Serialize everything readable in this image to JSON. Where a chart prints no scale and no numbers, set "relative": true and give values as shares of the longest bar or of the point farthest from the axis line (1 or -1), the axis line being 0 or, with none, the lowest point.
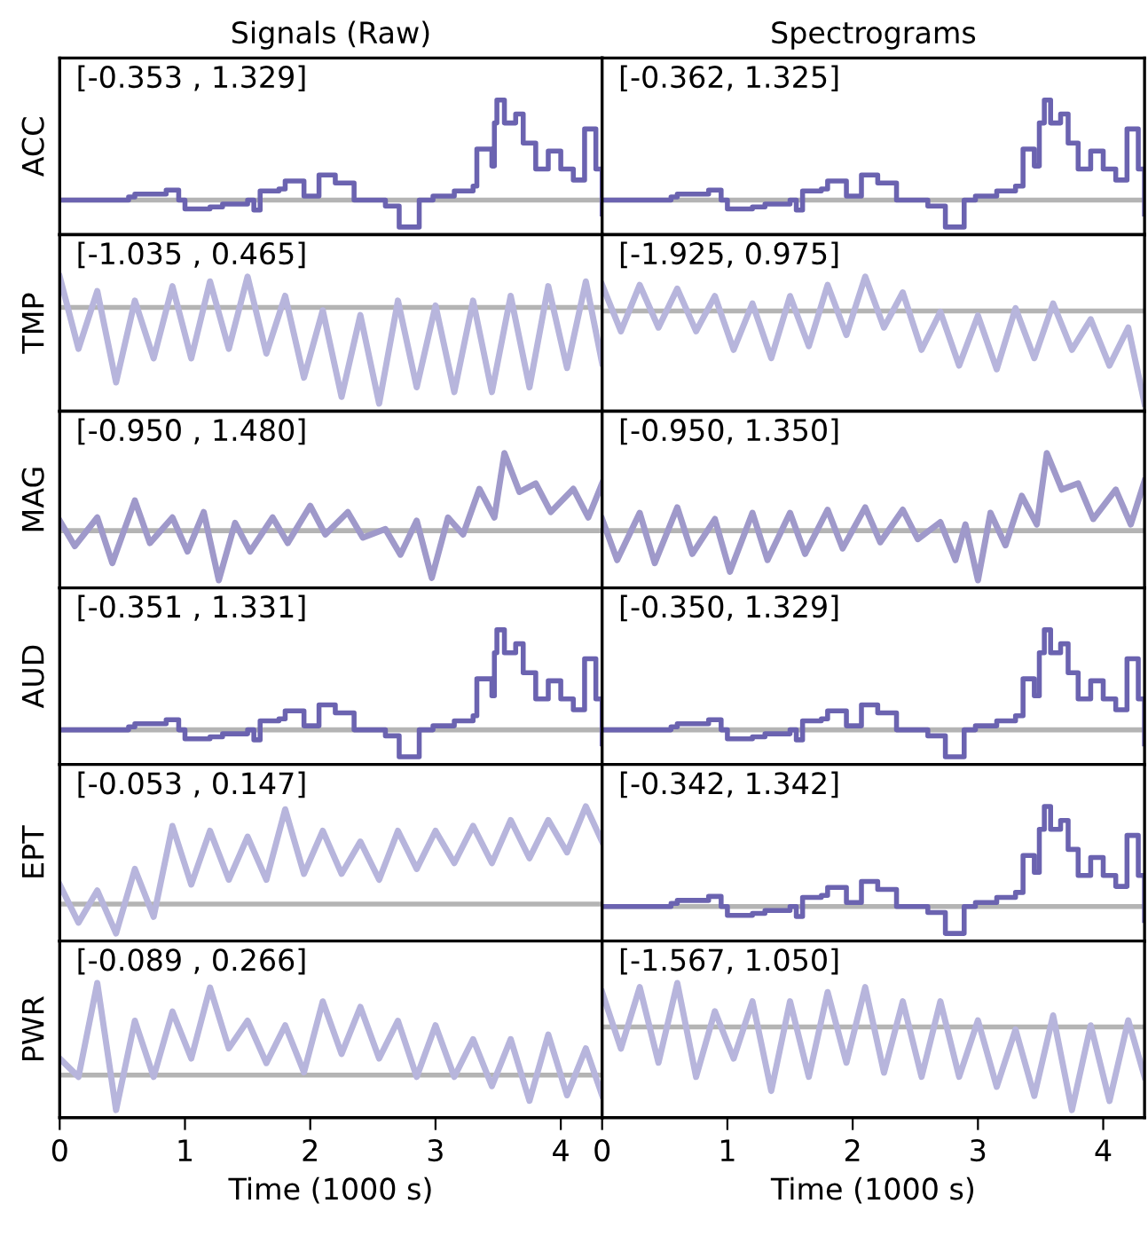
{
  "chart_data": [
    {
      "type": "step",
      "title": "Signals (Raw)",
      "ylabel": "ACC",
      "relative": true,
      "annotations": [
        "[-0.353 , 1.329]"
      ],
      "xlim": [
        0,
        4.33
      ],
      "xticks": [
        0,
        1,
        2,
        3,
        4
      ],
      "tick_labels": false,
      "ref_lines": [
        {
          "axis": "y",
          "value": 0,
          "color": "#b4b4b4"
        }
      ],
      "x": [
        0,
        0.55,
        0.6,
        0.85,
        0.95,
        1.0,
        1.2,
        1.3,
        1.5,
        1.55,
        1.6,
        1.75,
        1.8,
        1.95,
        2.07,
        2.2,
        2.35,
        2.6,
        2.71,
        2.87,
        2.98,
        3.15,
        3.3,
        3.33,
        3.45,
        3.47,
        3.49,
        3.55,
        3.64,
        3.7,
        3.8,
        3.9,
        4.0,
        4.1,
        4.19,
        4.28,
        4.33
      ],
      "series": [
        {
          "color": "#6b63b0",
          "values": [
            0,
            0.03,
            0.06,
            0.1,
            0,
            -0.09,
            -0.07,
            -0.04,
            0,
            -0.1,
            0.09,
            0.11,
            0.19,
            0.04,
            0.25,
            0.17,
            0,
            -0.06,
            -0.27,
            0,
            0.04,
            0.09,
            0.14,
            0.51,
            0.34,
            0.77,
            1.0,
            0.77,
            0.86,
            0.57,
            0.31,
            0.49,
            0.31,
            0.2,
            0.71,
            0.31,
            -0.14
          ]
        }
      ]
    },
    {
      "type": "step",
      "title": "Spectrograms",
      "relative": true,
      "annotations": [
        "[-0.362, 1.325]"
      ],
      "xlim": [
        0,
        4.33
      ],
      "xticks": [
        0,
        1,
        2,
        3,
        4
      ],
      "tick_labels": false,
      "ref_lines": [
        {
          "axis": "y",
          "value": 0,
          "color": "#b4b4b4"
        }
      ],
      "x": [
        0,
        0.55,
        0.6,
        0.85,
        0.95,
        1.0,
        1.2,
        1.3,
        1.5,
        1.55,
        1.6,
        1.75,
        1.8,
        1.95,
        2.07,
        2.2,
        2.35,
        2.6,
        2.74,
        2.89,
        2.98,
        3.15,
        3.3,
        3.36,
        3.45,
        3.49,
        3.53,
        3.58,
        3.66,
        3.72,
        3.8,
        3.9,
        4.0,
        4.1,
        4.19,
        4.28,
        4.33
      ],
      "series": [
        {
          "color": "#6b63b0",
          "values": [
            0,
            0.03,
            0.06,
            0.1,
            0,
            -0.09,
            -0.07,
            -0.04,
            0,
            -0.1,
            0.09,
            0.11,
            0.19,
            0.04,
            0.25,
            0.17,
            0,
            -0.06,
            -0.27,
            0,
            0.04,
            0.09,
            0.14,
            0.51,
            0.34,
            0.77,
            1.0,
            0.77,
            0.86,
            0.57,
            0.31,
            0.49,
            0.31,
            0.2,
            0.71,
            0.31,
            -0.14
          ]
        }
      ]
    },
    {
      "type": "line",
      "ylabel": "TMP",
      "relative": true,
      "annotations": [
        "[-1.035 , 0.465]"
      ],
      "xlim": [
        0,
        4.33
      ],
      "xticks": [
        0,
        1,
        2,
        3,
        4
      ],
      "tick_labels": false,
      "ref_lines": [
        {
          "axis": "y",
          "value": 0,
          "color": "#b4b4b4"
        }
      ],
      "x": [
        0,
        0.15,
        0.3,
        0.45,
        0.6,
        0.75,
        0.9,
        1.05,
        1.2,
        1.35,
        1.5,
        1.65,
        1.8,
        1.95,
        2.1,
        2.25,
        2.4,
        2.55,
        2.7,
        2.85,
        3.0,
        3.15,
        3.3,
        3.45,
        3.6,
        3.75,
        3.9,
        4.05,
        4.2,
        4.33
      ],
      "series": [
        {
          "color": "#b7b5dc",
          "values": [
            0.32,
            -0.43,
            0.17,
            -0.78,
            0.07,
            -0.53,
            0.22,
            -0.53,
            0.27,
            -0.43,
            0.32,
            -0.48,
            0.12,
            -0.73,
            -0.03,
            -0.93,
            -0.08,
            -1.0,
            0.07,
            -0.83,
            0.02,
            -0.88,
            0.07,
            -0.88,
            0.12,
            -0.83,
            0.22,
            -0.63,
            0.27,
            -0.58
          ]
        }
      ]
    },
    {
      "type": "line",
      "relative": true,
      "annotations": [
        "[-1.925, 0.975]"
      ],
      "xlim": [
        0,
        4.33
      ],
      "xticks": [
        0,
        1,
        2,
        3,
        4
      ],
      "tick_labels": false,
      "ref_lines": [
        {
          "axis": "y",
          "value": 0,
          "color": "#b4b4b4"
        }
      ],
      "x": [
        0,
        0.15,
        0.3,
        0.45,
        0.6,
        0.75,
        0.9,
        1.05,
        1.2,
        1.35,
        1.5,
        1.65,
        1.8,
        1.95,
        2.1,
        2.25,
        2.4,
        2.55,
        2.7,
        2.85,
        3.0,
        3.15,
        3.3,
        3.45,
        3.6,
        3.75,
        3.9,
        4.05,
        4.2,
        4.33
      ],
      "series": [
        {
          "color": "#b7b5dc",
          "values": [
            0.28,
            -0.22,
            0.28,
            -0.18,
            0.24,
            -0.22,
            0.16,
            -0.42,
            0.08,
            -0.51,
            0.16,
            -0.38,
            0.28,
            -0.26,
            0.37,
            -0.18,
            0.2,
            -0.42,
            -0.01,
            -0.59,
            -0.05,
            -0.63,
            0.03,
            -0.51,
            0.08,
            -0.42,
            -0.09,
            -0.59,
            -0.18,
            -1.0
          ]
        }
      ]
    },
    {
      "type": "line",
      "ylabel": "MAG",
      "relative": true,
      "annotations": [
        "[-0.950 , 1.480]"
      ],
      "xlim": [
        0,
        4.33
      ],
      "xticks": [
        0,
        1,
        2,
        3,
        4
      ],
      "tick_labels": false,
      "ref_lines": [
        {
          "axis": "y",
          "value": 0,
          "color": "#b4b4b4"
        }
      ],
      "x": [
        0,
        0.12,
        0.3,
        0.42,
        0.6,
        0.72,
        0.9,
        1.02,
        1.15,
        1.27,
        1.4,
        1.52,
        1.7,
        1.82,
        2.0,
        2.12,
        2.3,
        2.42,
        2.6,
        2.72,
        2.85,
        2.97,
        3.1,
        3.22,
        3.35,
        3.47,
        3.55,
        3.67,
        3.8,
        3.92,
        4.1,
        4.22,
        4.33
      ],
      "series": [
        {
          "color": "#9f99ca",
          "values": [
            0.13,
            -0.2,
            0.17,
            -0.42,
            0.39,
            -0.16,
            0.17,
            -0.27,
            0.24,
            -0.64,
            0.1,
            -0.27,
            0.17,
            -0.16,
            0.32,
            -0.05,
            0.24,
            -0.09,
            0.02,
            -0.31,
            0.13,
            -0.61,
            0.17,
            -0.05,
            0.54,
            0.17,
            1.0,
            0.5,
            0.61,
            0.24,
            0.54,
            0.17,
            0.61
          ]
        }
      ]
    },
    {
      "type": "line",
      "relative": true,
      "annotations": [
        "[-0.950, 1.350]"
      ],
      "xlim": [
        0,
        4.33
      ],
      "xticks": [
        0,
        1,
        2,
        3,
        4
      ],
      "tick_labels": false,
      "ref_lines": [
        {
          "axis": "y",
          "value": 0,
          "color": "#b4b4b4"
        }
      ],
      "x": [
        0,
        0.12,
        0.3,
        0.42,
        0.6,
        0.72,
        0.9,
        1.02,
        1.2,
        1.32,
        1.5,
        1.62,
        1.8,
        1.92,
        2.1,
        2.22,
        2.4,
        2.52,
        2.7,
        2.82,
        2.9,
        3.0,
        3.1,
        3.22,
        3.35,
        3.47,
        3.55,
        3.67,
        3.8,
        3.92,
        4.1,
        4.22,
        4.33
      ],
      "series": [
        {
          "color": "#9f99ca",
          "values": [
            0.15,
            -0.38,
            0.23,
            -0.42,
            0.3,
            -0.3,
            0.15,
            -0.53,
            0.23,
            -0.38,
            0.23,
            -0.3,
            0.27,
            -0.23,
            0.3,
            -0.15,
            0.27,
            -0.11,
            0.11,
            -0.38,
            0.08,
            -0.64,
            0.23,
            -0.19,
            0.45,
            0.08,
            1.0,
            0.53,
            0.61,
            0.15,
            0.53,
            0.08,
            0.64
          ]
        }
      ]
    },
    {
      "type": "step",
      "ylabel": "AUD",
      "relative": true,
      "annotations": [
        "[-0.351 , 1.331]"
      ],
      "xlim": [
        0,
        4.33
      ],
      "xticks": [
        0,
        1,
        2,
        3,
        4
      ],
      "tick_labels": false,
      "ref_lines": [
        {
          "axis": "y",
          "value": 0,
          "color": "#b4b4b4"
        }
      ],
      "x": [
        0,
        0.55,
        0.6,
        0.85,
        0.95,
        1.0,
        1.2,
        1.3,
        1.5,
        1.55,
        1.6,
        1.75,
        1.8,
        1.95,
        2.07,
        2.2,
        2.35,
        2.6,
        2.71,
        2.87,
        2.98,
        3.15,
        3.3,
        3.33,
        3.45,
        3.47,
        3.49,
        3.55,
        3.64,
        3.7,
        3.8,
        3.9,
        4.0,
        4.1,
        4.19,
        4.28,
        4.33
      ],
      "series": [
        {
          "color": "#6b63b0",
          "values": [
            0,
            0.03,
            0.06,
            0.1,
            0,
            -0.09,
            -0.07,
            -0.04,
            0,
            -0.1,
            0.09,
            0.11,
            0.19,
            0.04,
            0.25,
            0.17,
            0,
            -0.06,
            -0.27,
            0,
            0.04,
            0.09,
            0.14,
            0.51,
            0.34,
            0.77,
            1.0,
            0.77,
            0.86,
            0.57,
            0.31,
            0.49,
            0.31,
            0.2,
            0.71,
            0.31,
            -0.14
          ]
        }
      ]
    },
    {
      "type": "step",
      "relative": true,
      "annotations": [
        "[-0.350, 1.329]"
      ],
      "xlim": [
        0,
        4.33
      ],
      "xticks": [
        0,
        1,
        2,
        3,
        4
      ],
      "tick_labels": false,
      "ref_lines": [
        {
          "axis": "y",
          "value": 0,
          "color": "#b4b4b4"
        }
      ],
      "x": [
        0,
        0.55,
        0.6,
        0.85,
        0.95,
        1.0,
        1.2,
        1.3,
        1.5,
        1.55,
        1.6,
        1.75,
        1.8,
        1.95,
        2.07,
        2.2,
        2.35,
        2.6,
        2.74,
        2.89,
        2.98,
        3.15,
        3.3,
        3.36,
        3.45,
        3.49,
        3.53,
        3.58,
        3.66,
        3.72,
        3.8,
        3.9,
        4.0,
        4.1,
        4.19,
        4.28,
        4.33
      ],
      "series": [
        {
          "color": "#6b63b0",
          "values": [
            0,
            0.03,
            0.06,
            0.1,
            0,
            -0.09,
            -0.07,
            -0.04,
            0,
            -0.1,
            0.09,
            0.11,
            0.19,
            0.04,
            0.25,
            0.17,
            0,
            -0.06,
            -0.27,
            0,
            0.04,
            0.09,
            0.14,
            0.51,
            0.34,
            0.77,
            1.0,
            0.77,
            0.86,
            0.57,
            0.31,
            0.49,
            0.31,
            0.2,
            0.71,
            0.31,
            -0.14
          ]
        }
      ]
    },
    {
      "type": "line",
      "ylabel": "EPT",
      "relative": true,
      "annotations": [
        "[-0.053 , 0.147]"
      ],
      "xlim": [
        0,
        4.33
      ],
      "xticks": [
        0,
        1,
        2,
        3,
        4
      ],
      "tick_labels": false,
      "ref_lines": [
        {
          "axis": "y",
          "value": 0,
          "color": "#b4b4b4"
        }
      ],
      "x": [
        0,
        0.15,
        0.3,
        0.45,
        0.6,
        0.75,
        0.9,
        1.05,
        1.2,
        1.35,
        1.5,
        1.65,
        1.8,
        1.95,
        2.1,
        2.25,
        2.4,
        2.55,
        2.7,
        2.85,
        3.0,
        3.15,
        3.3,
        3.45,
        3.6,
        3.75,
        3.9,
        4.05,
        4.2,
        4.33
      ],
      "series": [
        {
          "color": "#b7b5dc",
          "values": [
            0.2,
            -0.19,
            0.14,
            -0.3,
            0.36,
            -0.13,
            0.8,
            0.2,
            0.75,
            0.25,
            0.69,
            0.25,
            0.97,
            0.31,
            0.75,
            0.31,
            0.64,
            0.25,
            0.75,
            0.36,
            0.75,
            0.42,
            0.8,
            0.42,
            0.86,
            0.47,
            0.86,
            0.53,
            1.0,
            0.64
          ]
        }
      ]
    },
    {
      "type": "step",
      "relative": true,
      "annotations": [
        "[-0.342, 1.342]"
      ],
      "xlim": [
        0,
        4.33
      ],
      "xticks": [
        0,
        1,
        2,
        3,
        4
      ],
      "tick_labels": false,
      "ref_lines": [
        {
          "axis": "y",
          "value": 0,
          "color": "#b4b4b4"
        }
      ],
      "x": [
        0,
        0.55,
        0.6,
        0.85,
        0.95,
        1.0,
        1.2,
        1.3,
        1.5,
        1.55,
        1.6,
        1.75,
        1.8,
        1.95,
        2.07,
        2.2,
        2.35,
        2.6,
        2.74,
        2.89,
        2.98,
        3.15,
        3.3,
        3.36,
        3.45,
        3.49,
        3.53,
        3.58,
        3.66,
        3.72,
        3.8,
        3.9,
        4.0,
        4.1,
        4.19,
        4.28,
        4.33
      ],
      "series": [
        {
          "color": "#6b63b0",
          "values": [
            0,
            0.03,
            0.06,
            0.1,
            0,
            -0.09,
            -0.07,
            -0.04,
            0,
            -0.1,
            0.09,
            0.11,
            0.19,
            0.04,
            0.25,
            0.17,
            0,
            -0.06,
            -0.27,
            0,
            0.04,
            0.09,
            0.14,
            0.51,
            0.34,
            0.77,
            1.0,
            0.77,
            0.86,
            0.57,
            0.31,
            0.49,
            0.31,
            0.2,
            0.71,
            0.31,
            -0.14
          ]
        }
      ]
    },
    {
      "type": "line",
      "ylabel": "PWR",
      "xlabel": "Time (1000 s)",
      "relative": true,
      "annotations": [
        "[-0.089 , 0.266]"
      ],
      "xlim": [
        0,
        4.33
      ],
      "xticks": [
        0,
        1,
        2,
        3,
        4
      ],
      "tick_labels": "x",
      "ref_lines": [
        {
          "axis": "y",
          "value": 0,
          "color": "#b4b4b4"
        }
      ],
      "x": [
        0,
        0.15,
        0.3,
        0.45,
        0.6,
        0.75,
        0.9,
        1.05,
        1.2,
        1.35,
        1.5,
        1.65,
        1.8,
        1.95,
        2.1,
        2.25,
        2.4,
        2.55,
        2.7,
        2.85,
        3.0,
        3.15,
        3.3,
        3.45,
        3.6,
        3.75,
        3.9,
        4.05,
        4.2,
        4.33
      ],
      "series": [
        {
          "color": "#b7b5dc",
          "values": [
            0.18,
            -0.02,
            1.0,
            -0.38,
            0.59,
            -0.02,
            0.69,
            0.18,
            0.95,
            0.29,
            0.59,
            0.13,
            0.54,
            0.03,
            0.8,
            0.23,
            0.74,
            0.18,
            0.59,
            -0.02,
            0.54,
            -0.02,
            0.39,
            -0.12,
            0.39,
            -0.28,
            0.44,
            -0.22,
            0.29,
            -0.22
          ]
        }
      ]
    },
    {
      "type": "line",
      "xlabel": "Time (1000 s)",
      "relative": true,
      "annotations": [
        "[-1.567, 1.050]"
      ],
      "xlim": [
        0,
        4.33
      ],
      "xticks": [
        0,
        1,
        2,
        3,
        4
      ],
      "tick_labels": "x",
      "ref_lines": [
        {
          "axis": "y",
          "value": 0,
          "color": "#b4b4b4"
        }
      ],
      "x": [
        0,
        0.15,
        0.3,
        0.45,
        0.6,
        0.75,
        0.9,
        1.05,
        1.2,
        1.35,
        1.5,
        1.65,
        1.8,
        1.95,
        2.1,
        2.25,
        2.4,
        2.55,
        2.7,
        2.85,
        3.0,
        3.15,
        3.3,
        3.45,
        3.6,
        3.75,
        3.9,
        4.05,
        4.2,
        4.33
      ],
      "series": [
        {
          "color": "#b7b5dc",
          "values": [
            0.42,
            -0.26,
            0.48,
            -0.43,
            0.53,
            -0.6,
            0.19,
            -0.38,
            0.31,
            -0.77,
            0.31,
            -0.6,
            0.42,
            -0.43,
            0.48,
            -0.55,
            0.31,
            -0.6,
            0.31,
            -0.6,
            0.08,
            -0.72,
            -0.03,
            -0.83,
            0.14,
            -1.0,
            0.02,
            -0.89,
            0.08,
            -0.6
          ]
        }
      ]
    }
  ]
}
